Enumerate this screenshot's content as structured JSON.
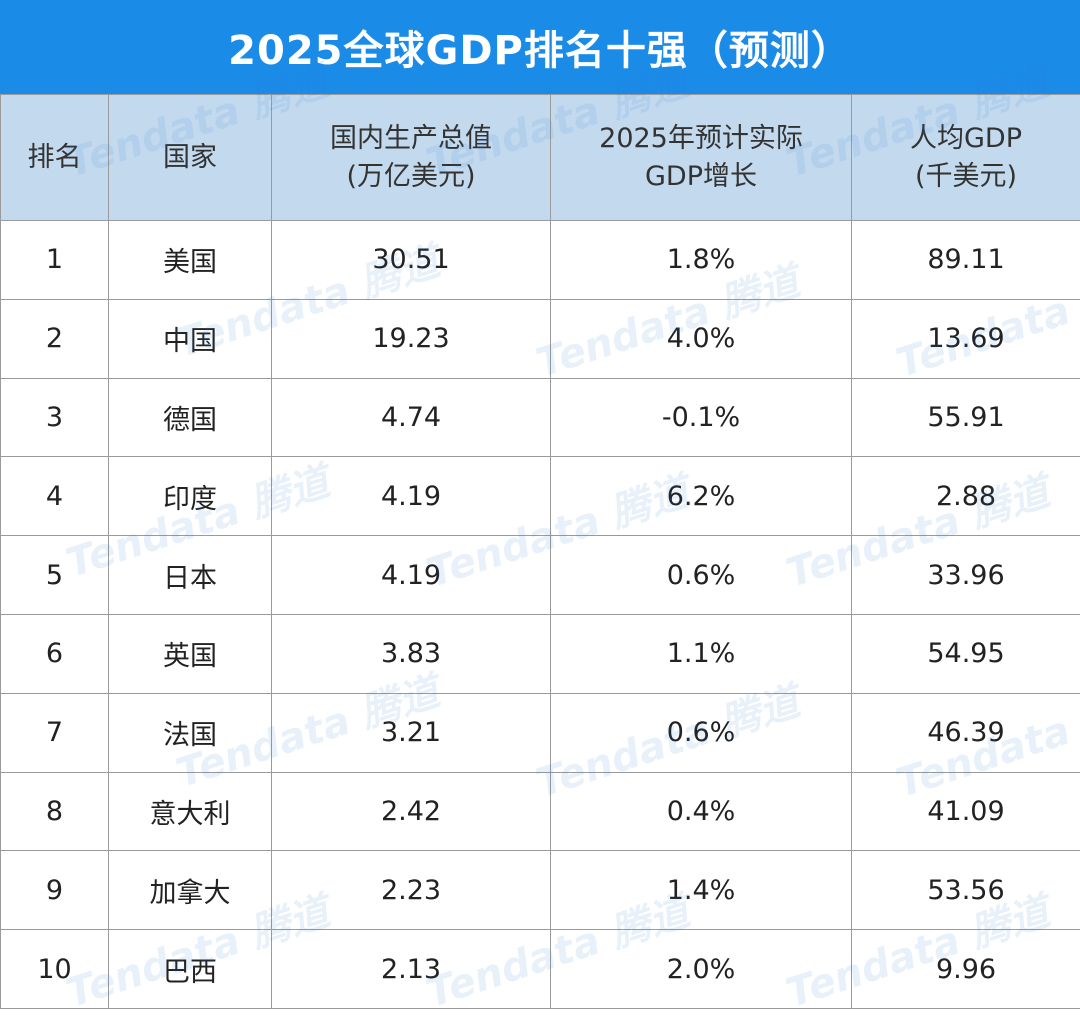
{
  "title": "2025全球GDP排名十强（预测）",
  "watermark": "Tendata 腾道",
  "colors": {
    "title_bg": "#1b8be8",
    "header_bg": "#c3d9ee"
  },
  "headers": {
    "rank": "排名",
    "country": "国家",
    "gdp_line1": "国内生产总值",
    "gdp_line2": "(万亿美元)",
    "growth_line1": "2025年预计实际",
    "growth_line2": "GDP增长",
    "per_capita_line1": "人均GDP",
    "per_capita_line2": "(千美元)"
  },
  "rows": [
    {
      "rank": "1",
      "country": "美国",
      "gdp": "30.51",
      "growth": "1.8%",
      "per_capita": "89.11"
    },
    {
      "rank": "2",
      "country": "中国",
      "gdp": "19.23",
      "growth": "4.0%",
      "per_capita": "13.69"
    },
    {
      "rank": "3",
      "country": "德国",
      "gdp": "4.74",
      "growth": "-0.1%",
      "per_capita": "55.91"
    },
    {
      "rank": "4",
      "country": "印度",
      "gdp": "4.19",
      "growth": "6.2%",
      "per_capita": "2.88"
    },
    {
      "rank": "5",
      "country": "日本",
      "gdp": "4.19",
      "growth": "0.6%",
      "per_capita": "33.96"
    },
    {
      "rank": "6",
      "country": "英国",
      "gdp": "3.83",
      "growth": "1.1%",
      "per_capita": "54.95"
    },
    {
      "rank": "7",
      "country": "法国",
      "gdp": "3.21",
      "growth": "0.6%",
      "per_capita": "46.39"
    },
    {
      "rank": "8",
      "country": "意大利",
      "gdp": "2.42",
      "growth": "0.4%",
      "per_capita": "41.09"
    },
    {
      "rank": "9",
      "country": "加拿大",
      "gdp": "2.23",
      "growth": "1.4%",
      "per_capita": "53.56"
    },
    {
      "rank": "10",
      "country": "巴西",
      "gdp": "2.13",
      "growth": "2.0%",
      "per_capita": "9.96"
    }
  ]
}
